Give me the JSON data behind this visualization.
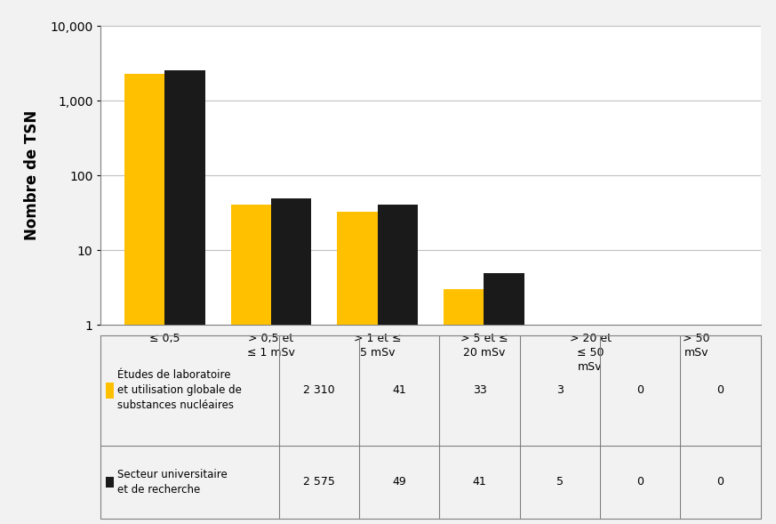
{
  "categories": [
    "≤ 0,5",
    "> 0,5 et\n≤ 1 mSv",
    "> 1 et ≤\n5 mSv",
    "> 5 et ≤\n20 mSv",
    "> 20 et\n≤ 50\nmSv",
    "> 50\nmSv"
  ],
  "series1_label": "Études de laboratoire\net utilisation globale de\nsubstances nucléaires",
  "series2_label": "Secteur universitaire\net de recherche",
  "series1_values": [
    2310,
    41,
    33,
    3,
    0,
    0
  ],
  "series2_values": [
    2575,
    49,
    41,
    5,
    0,
    0
  ],
  "series1_color": "#FFC000",
  "series2_color": "#1a1a1a",
  "ylabel": "Nombre de TSN",
  "ymin": 1,
  "ymax": 10000,
  "background_color": "#f2f2f2",
  "plot_background": "#ffffff",
  "table_row1_values": [
    "2 310",
    "41",
    "33",
    "3",
    "0",
    "0"
  ],
  "table_row2_values": [
    "2 575",
    "49",
    "41",
    "5",
    "0",
    "0"
  ],
  "grid_color": "#c0c0c0",
  "border_color": "#808080"
}
